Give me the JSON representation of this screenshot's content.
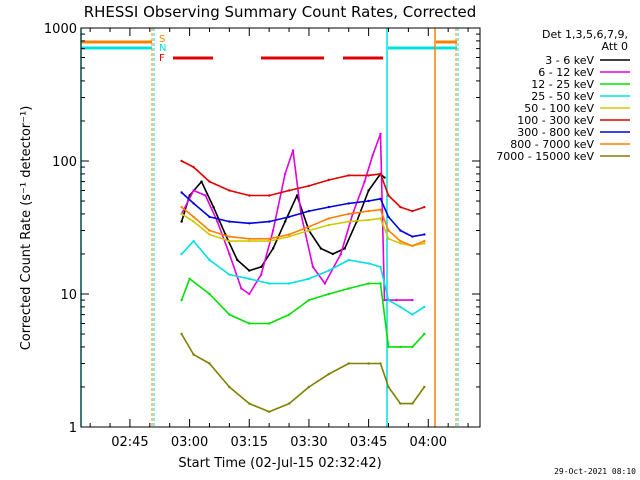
{
  "chart_data": {
    "type": "line",
    "title": "RHESSI Observing Summary Count Rates, Corrected",
    "xlabel": "Start Time (02-Jul-15 02:32:42)",
    "ylabel": "Corrected Count Rate (s⁻¹ detector⁻¹)",
    "y_scale": "log",
    "ylim": [
      1,
      1000
    ],
    "y_ticks": [
      "1",
      "10",
      "100",
      "1000"
    ],
    "x_ticks": [
      "02:45",
      "03:00",
      "03:15",
      "03:30",
      "03:45",
      "04:00"
    ],
    "x_tick_minutes": [
      165,
      180,
      195,
      210,
      225,
      240
    ],
    "xlim_minutes": [
      152.7,
      253
    ],
    "legend_header": [
      "Det 1,3,5,6,7,9,",
      "Att 0"
    ],
    "legend_position": "right",
    "flag_labels": [
      "S",
      "N",
      "F"
    ],
    "footer_date": "29-Oct-2021 08:10",
    "colors": {
      "3 - 6 keV": "#000000",
      "6 - 12 keV": "#e000e0",
      "12 - 25 keV": "#00e000",
      "25 - 50 keV": "#00e0e0",
      "50 - 100 keV": "#d2c800",
      "100 - 300 keV": "#e00000",
      "300 - 800 keV": "#0000e0",
      "800 - 7000 keV": "#ff8000",
      "7000 - 15000 keV": "#808000"
    },
    "series": [
      {
        "name": "3 - 6 keV",
        "color": "#000000",
        "x": [
          178,
          180,
          183,
          186,
          189,
          192,
          195,
          198,
          201,
          204,
          207,
          210,
          213,
          216,
          219,
          222,
          225,
          228,
          229
        ],
        "values": [
          35,
          55,
          70,
          45,
          28,
          18,
          15,
          16,
          22,
          35,
          55,
          30,
          22,
          20,
          22,
          35,
          60,
          80,
          75
        ]
      },
      {
        "name": "6 - 12 keV",
        "color": "#e000e0",
        "x": [
          178,
          181,
          184,
          187,
          190,
          193,
          195,
          198,
          201,
          204,
          206,
          208,
          211,
          214,
          218,
          221,
          224,
          226,
          228,
          229,
          232,
          236
        ],
        "values": [
          40,
          60,
          55,
          35,
          20,
          11,
          10,
          14,
          30,
          80,
          120,
          40,
          16,
          12,
          20,
          40,
          70,
          110,
          160,
          9,
          9,
          9
        ]
      },
      {
        "name": "12 - 25 keV",
        "color": "#00e000",
        "x": [
          178,
          180,
          185,
          190,
          195,
          200,
          205,
          210,
          215,
          220,
          225,
          228,
          230,
          233,
          236,
          239
        ],
        "values": [
          9,
          13,
          10,
          7,
          6,
          6,
          7,
          9,
          10,
          11,
          12,
          12,
          4,
          4,
          4,
          5
        ]
      },
      {
        "name": "25 - 50 keV",
        "color": "#00e0e0",
        "x": [
          178,
          181,
          185,
          190,
          195,
          200,
          205,
          210,
          215,
          220,
          225,
          228,
          230,
          233,
          236,
          239
        ],
        "values": [
          20,
          25,
          18,
          14,
          13,
          12,
          12,
          13,
          15,
          18,
          17,
          16,
          9,
          8,
          7,
          8
        ]
      },
      {
        "name": "50 - 100 keV",
        "color": "#d2c800",
        "x": [
          178,
          181,
          185,
          190,
          195,
          200,
          205,
          210,
          215,
          220,
          225,
          228,
          230,
          233,
          236,
          239
        ],
        "values": [
          40,
          35,
          28,
          25,
          25,
          25,
          27,
          30,
          33,
          35,
          36,
          37,
          26,
          24,
          23,
          24
        ]
      },
      {
        "name": "100 - 300 keV",
        "color": "#e00000",
        "x": [
          178,
          181,
          185,
          190,
          195,
          200,
          205,
          210,
          215,
          220,
          225,
          228,
          230,
          233,
          236,
          239
        ],
        "values": [
          100,
          90,
          70,
          60,
          55,
          55,
          60,
          65,
          72,
          78,
          78,
          80,
          55,
          45,
          42,
          45
        ]
      },
      {
        "name": "300 - 800 keV",
        "color": "#0000e0",
        "x": [
          178,
          181,
          185,
          190,
          195,
          200,
          205,
          210,
          215,
          220,
          225,
          228,
          230,
          233,
          236,
          239
        ],
        "values": [
          58,
          48,
          38,
          35,
          34,
          35,
          38,
          42,
          45,
          48,
          50,
          52,
          38,
          30,
          27,
          28
        ]
      },
      {
        "name": "800 - 7000 keV",
        "color": "#ff8000",
        "x": [
          178,
          181,
          185,
          190,
          195,
          200,
          205,
          210,
          215,
          220,
          225,
          228,
          230,
          233,
          236,
          239
        ],
        "values": [
          45,
          38,
          30,
          27,
          26,
          26,
          28,
          32,
          37,
          40,
          42,
          43,
          30,
          25,
          23,
          25
        ]
      },
      {
        "name": "7000 - 15000 keV",
        "color": "#808000",
        "x": [
          178,
          181,
          185,
          190,
          195,
          200,
          205,
          210,
          215,
          220,
          225,
          228,
          230,
          233,
          236,
          239
        ],
        "values": [
          5,
          3.5,
          3,
          2,
          1.5,
          1.3,
          1.5,
          2,
          2.5,
          3,
          3,
          3,
          2,
          1.5,
          1.5,
          2
        ]
      }
    ]
  }
}
